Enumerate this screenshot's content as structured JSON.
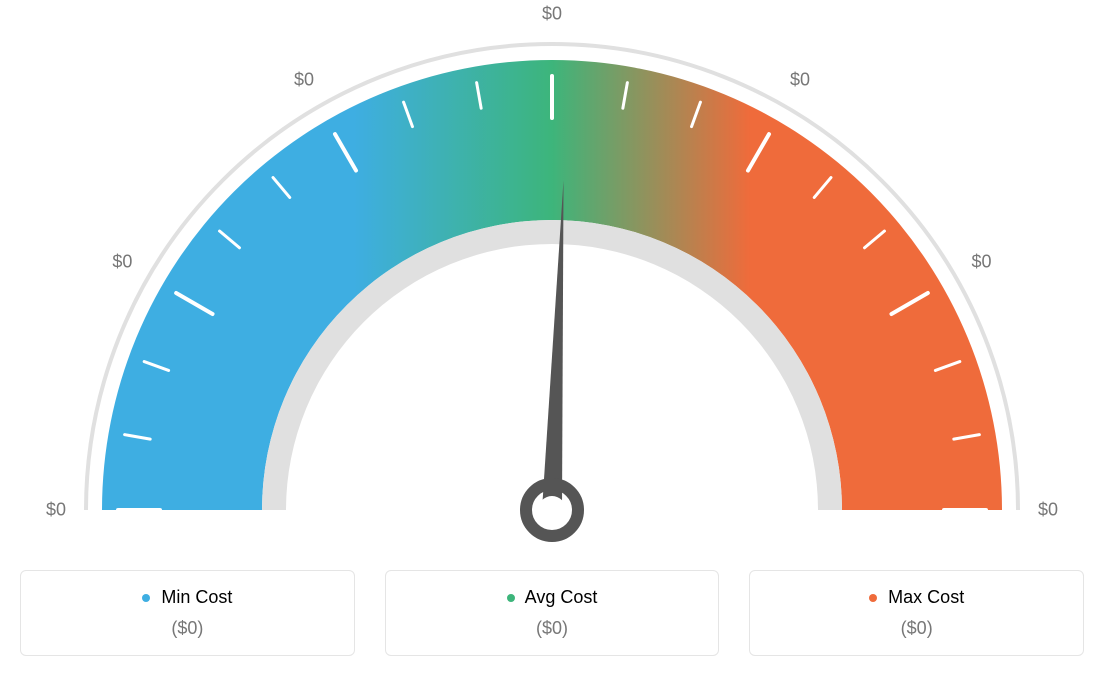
{
  "gauge": {
    "type": "gauge",
    "scale_labels": [
      "$0",
      "$0",
      "$0",
      "$0",
      "$0",
      "$0",
      "$0"
    ],
    "label_fontsize": 18,
    "label_color": "#777777",
    "colors": {
      "min": "#3eaee2",
      "avg": "#3db57b",
      "max": "#ef6b3b",
      "outer_ring": "#e0e0e0",
      "inner_ring": "#e0e0e0",
      "needle": "#555555",
      "tick": "#ffffff",
      "background": "#ffffff"
    },
    "outer_ring_width": 4,
    "inner_ring_width": 24,
    "arc_thickness": 160,
    "tick_count_major": 7,
    "tick_count_total": 19,
    "needle_angle_deg": 88
  },
  "legend": {
    "items": [
      {
        "label": "Min Cost",
        "value": "($0)",
        "color": "#3eaee2"
      },
      {
        "label": "Avg Cost",
        "value": "($0)",
        "color": "#3db57b"
      },
      {
        "label": "Max Cost",
        "value": "($0)",
        "color": "#ef6b3b"
      }
    ],
    "border_color": "#e5e5e5",
    "label_fontsize": 18,
    "value_fontsize": 18,
    "value_color": "#777777"
  }
}
